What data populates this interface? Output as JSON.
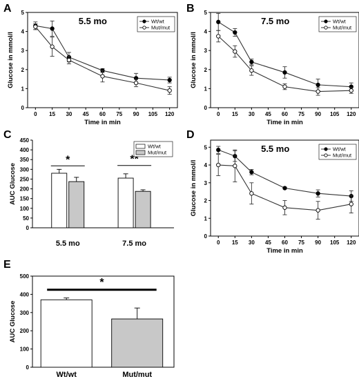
{
  "figure": {
    "panel_letters": [
      "A",
      "B",
      "C",
      "D",
      "E"
    ]
  },
  "chart_data": [
    {
      "panel": "A",
      "type": "line",
      "title": "5.5 mo",
      "xlabel": "Time in min",
      "ylabel": "Glucose in mmol/l",
      "x": [
        0,
        15,
        30,
        60,
        90,
        120
      ],
      "x_ticks": [
        0,
        15,
        30,
        45,
        60,
        75,
        90,
        105,
        120
      ],
      "xlim": [
        -7,
        127
      ],
      "ylim": [
        0,
        5
      ],
      "y_ticks": [
        0,
        1,
        2,
        3,
        4,
        5
      ],
      "legend_position": "top-right",
      "series": [
        {
          "name": "Wt/wt",
          "marker": "filled",
          "values": [
            4.3,
            4.15,
            2.65,
            1.95,
            1.55,
            1.45
          ],
          "errors": [
            0.2,
            0.4,
            0.25,
            0.1,
            0.25,
            0.15
          ]
        },
        {
          "name": "Mut/mut",
          "marker": "open",
          "values": [
            4.25,
            3.2,
            2.5,
            1.65,
            1.3,
            0.9
          ],
          "errors": [
            0.15,
            0.5,
            0.2,
            0.3,
            0.2,
            0.2
          ]
        }
      ]
    },
    {
      "panel": "B",
      "type": "line",
      "title": "7.5 mo",
      "xlabel": "Time in min",
      "ylabel": "Glucose in mmol/l",
      "x": [
        0,
        15,
        30,
        60,
        90,
        120
      ],
      "x_ticks": [
        0,
        15,
        30,
        45,
        60,
        75,
        90,
        105,
        120
      ],
      "xlim": [
        -7,
        127
      ],
      "ylim": [
        0,
        5
      ],
      "y_ticks": [
        0,
        1,
        2,
        3,
        4,
        5
      ],
      "legend_position": "top-right",
      "series": [
        {
          "name": "Wt/wt",
          "marker": "filled",
          "values": [
            4.5,
            3.95,
            2.4,
            1.85,
            1.2,
            1.1
          ],
          "errors": [
            0.45,
            0.2,
            0.15,
            0.3,
            0.3,
            0.2
          ]
        },
        {
          "name": "Mut/mut",
          "marker": "open",
          "values": [
            3.75,
            2.95,
            1.95,
            1.1,
            0.85,
            0.9
          ],
          "errors": [
            0.3,
            0.3,
            0.25,
            0.15,
            0.2,
            0.15
          ]
        }
      ]
    },
    {
      "panel": "C",
      "type": "bar",
      "title": "",
      "xlabel": "",
      "ylabel": "AUC Glucose",
      "categories": [
        "5.5 mo",
        "7.5 mo"
      ],
      "ylim": [
        0,
        450
      ],
      "y_ticks": [
        0,
        50,
        100,
        150,
        200,
        250,
        300,
        350,
        400,
        450
      ],
      "legend_position": "top-right",
      "series": [
        {
          "name": "Wt/wt",
          "color": "#ffffff",
          "values": [
            280,
            255
          ],
          "errors": [
            20,
            22
          ]
        },
        {
          "name": "Mut/mut",
          "color": "#c8c8c8",
          "values": [
            237,
            187
          ],
          "errors": [
            22,
            8
          ]
        }
      ],
      "annotations": [
        "*",
        "**"
      ]
    },
    {
      "panel": "D",
      "type": "line",
      "title": "5.5 mo",
      "xlabel": "Time in min",
      "ylabel": "Glucose in mmol/l",
      "x": [
        0,
        15,
        30,
        60,
        90,
        120
      ],
      "x_ticks": [
        0,
        15,
        30,
        45,
        60,
        75,
        90,
        105,
        120
      ],
      "xlim": [
        -7,
        127
      ],
      "ylim": [
        0,
        5.4
      ],
      "y_ticks": [
        0,
        1,
        2,
        3,
        4,
        5
      ],
      "legend_position": "top-right",
      "series": [
        {
          "name": "Wt/wt",
          "marker": "filled",
          "values": [
            4.85,
            4.5,
            3.6,
            2.7,
            2.4,
            2.25
          ],
          "errors": [
            0.2,
            0.3,
            0.15,
            0.05,
            0.2,
            0.3
          ]
        },
        {
          "name": "Mut/mut",
          "marker": "open",
          "values": [
            4.0,
            3.95,
            2.4,
            1.6,
            1.45,
            1.8
          ],
          "errors": [
            0.6,
            0.9,
            0.6,
            0.4,
            0.5,
            0.5
          ]
        }
      ]
    },
    {
      "panel": "E",
      "type": "bar",
      "title": "",
      "xlabel": "",
      "ylabel": "AUC Glucose",
      "categories": [
        "Wt/wt",
        "Mut/mut"
      ],
      "ylim": [
        0,
        500
      ],
      "y_ticks": [
        0,
        100,
        200,
        300,
        400,
        500
      ],
      "series": [
        {
          "name": "",
          "values": [
            370,
            265
          ],
          "errors": [
            10,
            60
          ],
          "colors": [
            "#ffffff",
            "#c8c8c8"
          ]
        }
      ],
      "annotations": [
        "*"
      ]
    }
  ]
}
